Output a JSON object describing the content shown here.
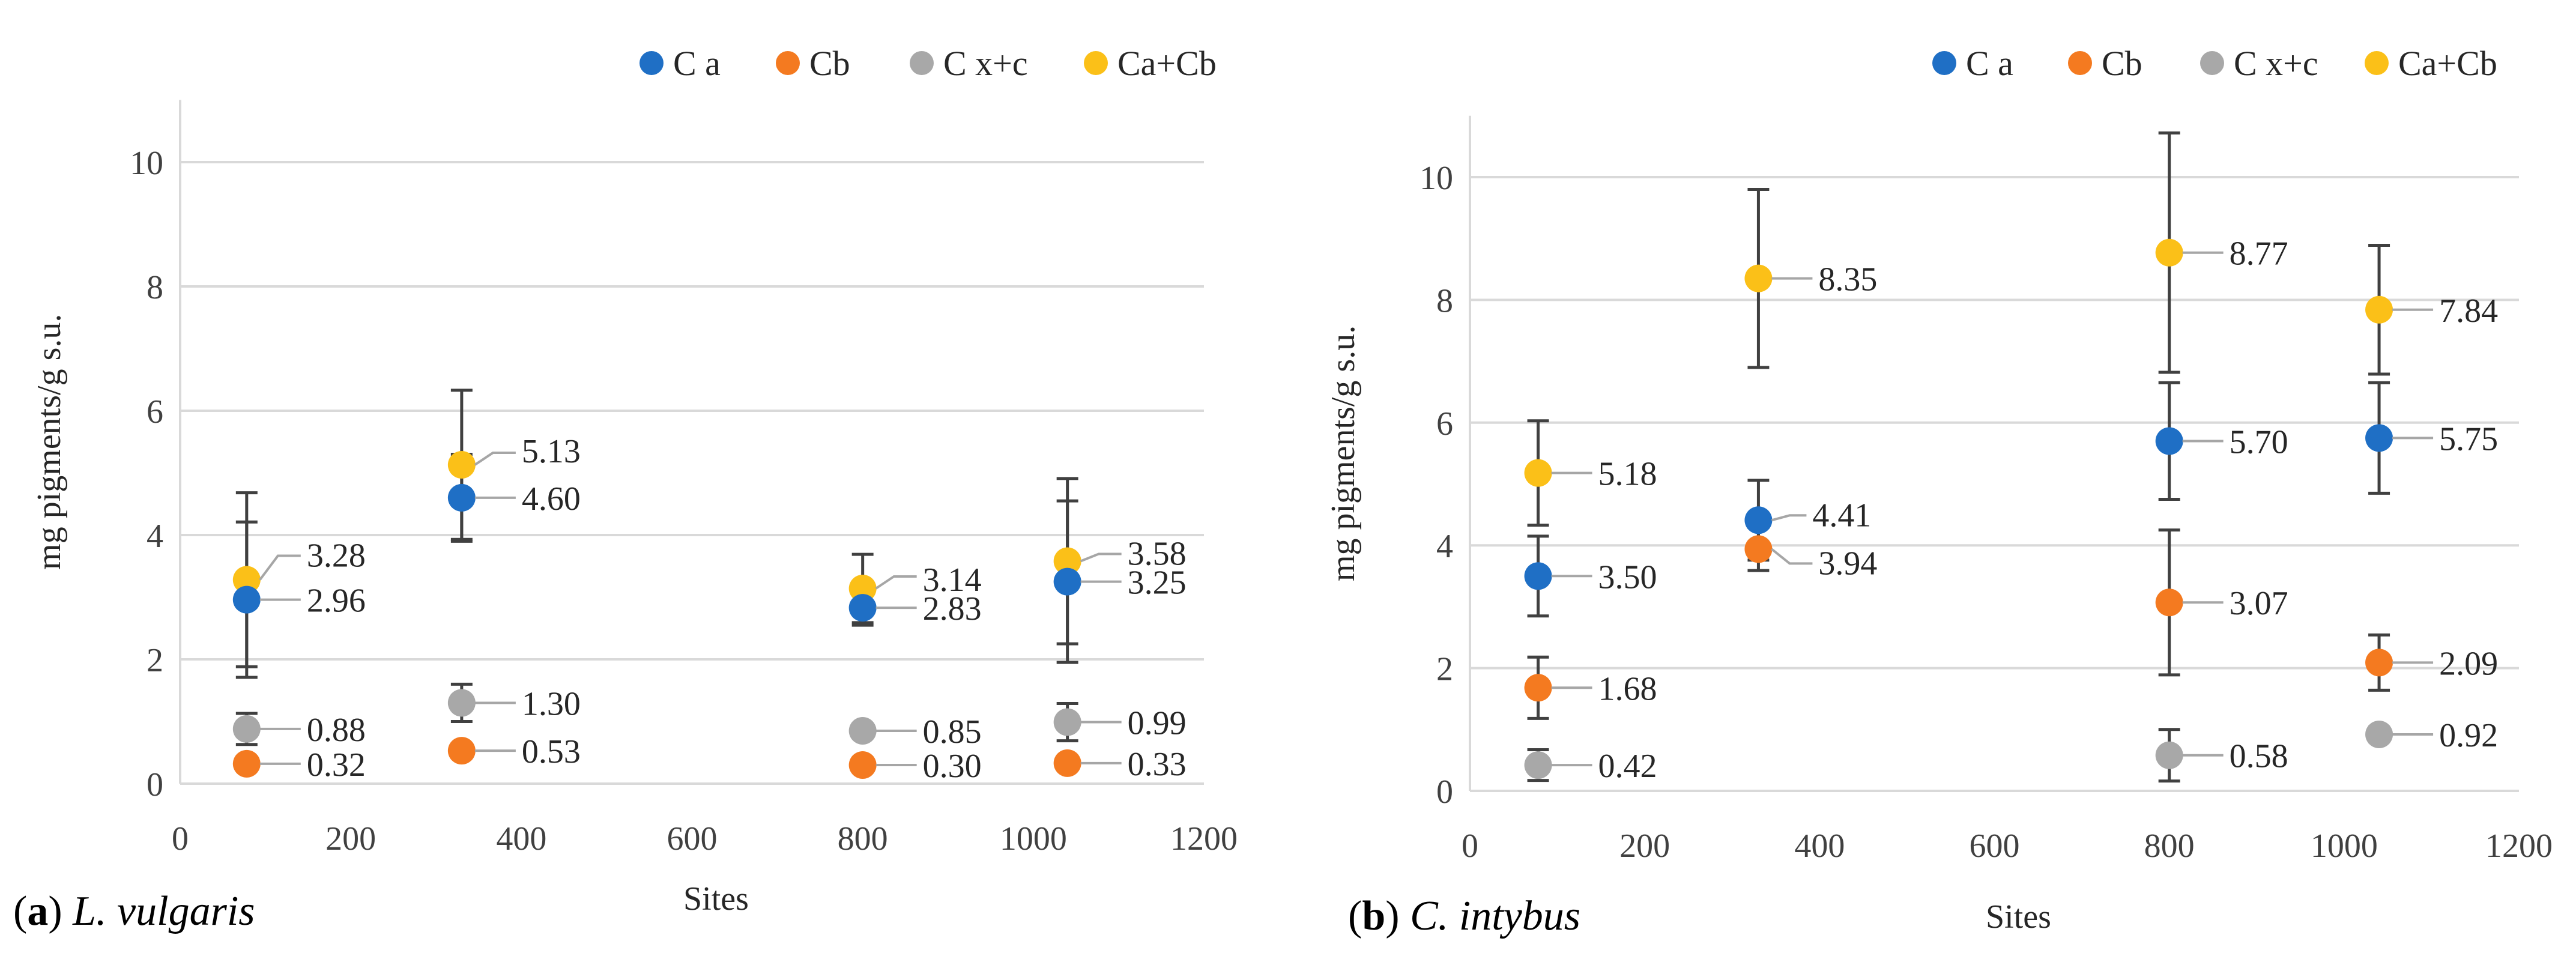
{
  "colors": {
    "Ca": "#1f6fc5",
    "Cb": "#f47a20",
    "Cxc": "#a8a8a8",
    "CaCb": "#fbc018",
    "grid": "#d9d9d9",
    "error_bar": "#404040",
    "leader": "#a6a6a6"
  },
  "chart_data": [
    {
      "type": "scatter",
      "panel_letter": "a",
      "species": "L. vulgaris",
      "xlabel": "Sites",
      "ylabel": "mg pigments/g s.u.",
      "xlim": [
        0,
        1200
      ],
      "ylim": [
        0,
        11
      ],
      "x_ticks": [
        0,
        200,
        400,
        600,
        800,
        1000,
        1200
      ],
      "y_ticks": [
        0,
        2,
        4,
        6,
        8,
        10
      ],
      "grid": true,
      "legend_position": "top-right",
      "series": [
        {
          "name": "C a",
          "color_key": "Ca",
          "x": [
            78,
            330,
            800,
            1040
          ],
          "values": [
            2.96,
            4.6,
            2.83,
            3.25
          ],
          "labels": [
            "2.96",
            "4.60",
            "2.83",
            "3.25"
          ],
          "error": [
            1.25,
            0.7,
            0.28,
            1.3
          ]
        },
        {
          "name": "Cb",
          "color_key": "Cb",
          "x": [
            78,
            330,
            800,
            1040
          ],
          "values": [
            0.32,
            0.53,
            0.3,
            0.33
          ],
          "labels": [
            "0.32",
            "0.53",
            "0.30",
            "0.33"
          ],
          "error": [
            0.1,
            0.08,
            0.05,
            0.1
          ]
        },
        {
          "name": "C x+c",
          "color_key": "Cxc",
          "x": [
            78,
            330,
            800,
            1040
          ],
          "values": [
            0.88,
            1.3,
            0.85,
            0.99
          ],
          "labels": [
            "0.88",
            "1.30",
            "0.85",
            "0.99"
          ],
          "error": [
            0.25,
            0.3,
            0.08,
            0.3
          ]
        },
        {
          "name": "Ca+Cb",
          "color_key": "CaCb",
          "x": [
            78,
            330,
            800,
            1040
          ],
          "values": [
            3.28,
            5.13,
            3.14,
            3.58
          ],
          "labels": [
            "3.28",
            "5.13",
            "3.14",
            "3.58"
          ],
          "error": [
            1.4,
            1.2,
            0.55,
            1.33
          ]
        }
      ]
    },
    {
      "type": "scatter",
      "panel_letter": "b",
      "species": "C. intybus",
      "xlabel": "Sites",
      "ylabel": "mg pigments/g s.u.",
      "xlim": [
        0,
        1200
      ],
      "ylim": [
        0,
        11
      ],
      "x_ticks": [
        0,
        200,
        400,
        600,
        800,
        1000,
        1200
      ],
      "y_ticks": [
        0,
        2,
        4,
        6,
        8,
        10
      ],
      "grid": true,
      "legend_position": "top-right",
      "series": [
        {
          "name": "C a",
          "color_key": "Ca",
          "x": [
            78,
            330,
            800,
            1040
          ],
          "values": [
            3.5,
            4.41,
            5.7,
            5.75
          ],
          "labels": [
            "3.50",
            "4.41",
            "5.70",
            "5.75"
          ],
          "error": [
            0.65,
            0.65,
            0.95,
            0.9
          ]
        },
        {
          "name": "Cb",
          "color_key": "Cb",
          "x": [
            78,
            330,
            800,
            1040
          ],
          "values": [
            1.68,
            3.94,
            3.07,
            2.09
          ],
          "labels": [
            "1.68",
            "3.94",
            "3.07",
            "2.09"
          ],
          "error": [
            0.5,
            0.35,
            1.18,
            0.45
          ]
        },
        {
          "name": "C x+c",
          "color_key": "Cxc",
          "x": [
            78,
            330,
            800,
            1040
          ],
          "values": [
            0.42,
            null,
            0.58,
            0.92
          ],
          "labels": [
            "0.42",
            "",
            "0.58",
            "0.92"
          ],
          "error": [
            0.25,
            0,
            0.42,
            0.12
          ]
        },
        {
          "name": "Ca+Cb",
          "color_key": "CaCb",
          "x": [
            78,
            330,
            800,
            1040
          ],
          "values": [
            5.18,
            8.35,
            8.77,
            7.84
          ],
          "labels": [
            "5.18",
            "8.35",
            "8.77",
            "7.84"
          ],
          "error": [
            0.85,
            1.45,
            1.95,
            1.05
          ]
        }
      ]
    }
  ]
}
